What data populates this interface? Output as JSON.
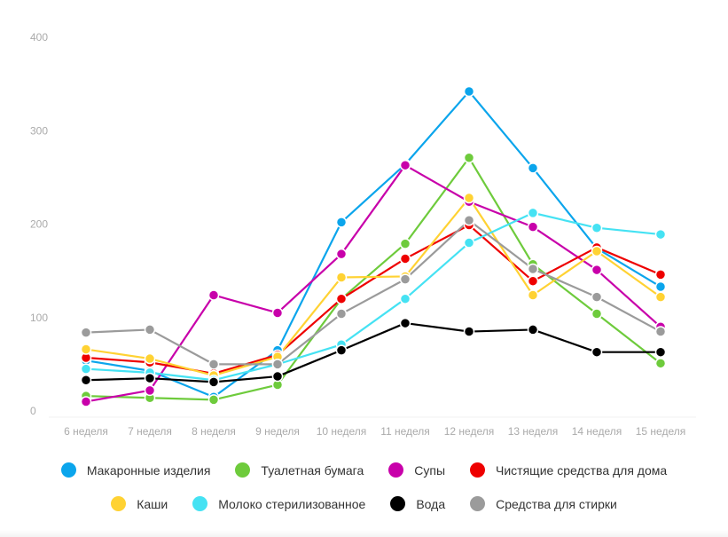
{
  "chart_data": {
    "type": "line",
    "title": "",
    "xlabel": "",
    "ylabel": "",
    "ylim": [
      0,
      400
    ],
    "yticks": [
      "0",
      "100",
      "200",
      "300",
      "400"
    ],
    "categories": [
      "6 неделя",
      "7 неделя",
      "8 неделя",
      "9 неделя",
      "10 неделя",
      "11 неделя",
      "12 неделя",
      "13 неделя",
      "14 неделя",
      "15 неделя"
    ],
    "legend_position": "bottom",
    "grid": false,
    "series": [
      {
        "name": "Макаронные изделия",
        "color": "#0ba5ec",
        "values": [
          54,
          43,
          15,
          65,
          202,
          264,
          342,
          260,
          174,
          133
        ]
      },
      {
        "name": "Туалетная бумага",
        "color": "#6ecb3c",
        "values": [
          16,
          14,
          12,
          28,
          120,
          179,
          271,
          157,
          104,
          51
        ]
      },
      {
        "name": "Супы",
        "color": "#c800aa",
        "values": [
          10,
          22,
          124,
          105,
          168,
          263,
          224,
          197,
          151,
          90
        ]
      },
      {
        "name": "Чистящие средства для дома",
        "color": "#ee0000",
        "values": [
          57,
          52,
          40,
          60,
          120,
          163,
          199,
          139,
          175,
          146
        ]
      },
      {
        "name": "Каши",
        "color": "#ffd233",
        "values": [
          66,
          56,
          38,
          58,
          143,
          144,
          228,
          124,
          171,
          122
        ]
      },
      {
        "name": "Молоко стерилизованное",
        "color": "#45e2f3",
        "values": [
          45,
          41,
          33,
          50,
          71,
          120,
          180,
          212,
          196,
          189
        ]
      },
      {
        "name": "Вода",
        "color": "#000000",
        "values": [
          33,
          35,
          31,
          37,
          65,
          94,
          85,
          87,
          63,
          63
        ]
      },
      {
        "name": "Средства для стирки",
        "color": "#9b9b9b",
        "values": [
          84,
          87,
          50,
          50,
          104,
          141,
          204,
          152,
          122,
          85
        ]
      }
    ]
  }
}
